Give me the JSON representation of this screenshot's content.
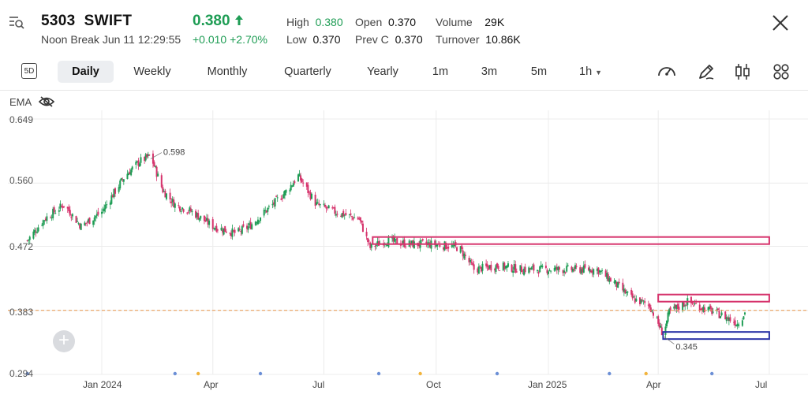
{
  "header": {
    "code": "5303",
    "name": "SWIFT",
    "session": "Noon Break",
    "datetime": "Jun 11 12:29:55",
    "price": "0.380",
    "change": "+0.010",
    "change_pct": "+2.70%",
    "stats": {
      "high_label": "High",
      "high": "0.380",
      "low_label": "Low",
      "low": "0.370",
      "open_label": "Open",
      "open": "0.370",
      "prevc_label": "Prev C",
      "prevc": "0.370",
      "volume_label": "Volume",
      "volume": "29K",
      "turnover_label": "Turnover",
      "turnover": "10.86K"
    },
    "up_color": "#1f9d55",
    "down_color": "#d6336c"
  },
  "toolbar": {
    "period_icon": "5D",
    "tabs": [
      "Daily",
      "Weekly",
      "Monthly",
      "Quarterly",
      "Yearly",
      "1m",
      "3m",
      "5m",
      "1h"
    ],
    "active_tab": "Daily",
    "tool_icons": [
      "gauge-icon",
      "pen-icon",
      "candlestick-icon",
      "grid-icon"
    ]
  },
  "indicator": {
    "label": "EMA",
    "icon": "eye-off-icon"
  },
  "chart_data": {
    "type": "candlestick",
    "y_ticks": [
      "0.649",
      "0.560",
      "0.472",
      "0.383",
      "0.294"
    ],
    "ylim": [
      0.294,
      0.649
    ],
    "x_ticks": [
      "Jan 2024",
      "Apr",
      "Jul",
      "Oct",
      "Jan 2025",
      "Apr",
      "Jul"
    ],
    "annotations": {
      "high": "0.598",
      "low": "0.345"
    },
    "last_price_line": 0.383,
    "close_path": [
      [
        "2023-11-01",
        0.48
      ],
      [
        "2023-11-15",
        0.51
      ],
      [
        "2023-12-01",
        0.53
      ],
      [
        "2023-12-15",
        0.5
      ],
      [
        "2024-01-01",
        0.52
      ],
      [
        "2024-01-20",
        0.57
      ],
      [
        "2024-02-01",
        0.59
      ],
      [
        "2024-02-10",
        0.598
      ],
      [
        "2024-02-20",
        0.55
      ],
      [
        "2024-03-01",
        0.53
      ],
      [
        "2024-03-15",
        0.52
      ],
      [
        "2024-04-01",
        0.5
      ],
      [
        "2024-04-20",
        0.49
      ],
      [
        "2024-05-01",
        0.5
      ],
      [
        "2024-05-20",
        0.53
      ],
      [
        "2024-06-01",
        0.55
      ],
      [
        "2024-06-10",
        0.57
      ],
      [
        "2024-06-25",
        0.53
      ],
      [
        "2024-07-10",
        0.52
      ],
      [
        "2024-07-30",
        0.51
      ],
      [
        "2024-08-08",
        0.47
      ],
      [
        "2024-08-20",
        0.48
      ],
      [
        "2024-09-10",
        0.475
      ],
      [
        "2024-10-01",
        0.475
      ],
      [
        "2024-10-20",
        0.47
      ],
      [
        "2024-11-01",
        0.44
      ],
      [
        "2024-11-20",
        0.445
      ],
      [
        "2024-12-10",
        0.44
      ],
      [
        "2025-01-01",
        0.44
      ],
      [
        "2025-01-20",
        0.44
      ],
      [
        "2025-02-10",
        0.44
      ],
      [
        "2025-02-25",
        0.42
      ],
      [
        "2025-03-10",
        0.4
      ],
      [
        "2025-03-25",
        0.39
      ],
      [
        "2025-04-05",
        0.35
      ],
      [
        "2025-04-10",
        0.38
      ],
      [
        "2025-04-25",
        0.395
      ],
      [
        "2025-05-10",
        0.385
      ],
      [
        "2025-05-25",
        0.375
      ],
      [
        "2025-06-05",
        0.365
      ],
      [
        "2025-06-11",
        0.38
      ]
    ],
    "zones": [
      {
        "color": "#d6336c",
        "x0": "2024-08-10",
        "x1": "2025-07-01",
        "y0": 0.48,
        "y1": 0.485
      },
      {
        "color": "#d6336c",
        "x0": "2025-04-01",
        "x1": "2025-07-01",
        "y0": 0.398,
        "y1": 0.405
      },
      {
        "color": "#2b34a6",
        "x0": "2025-04-05",
        "x1": "2025-07-01",
        "y0": 0.345,
        "y1": 0.353
      }
    ]
  }
}
